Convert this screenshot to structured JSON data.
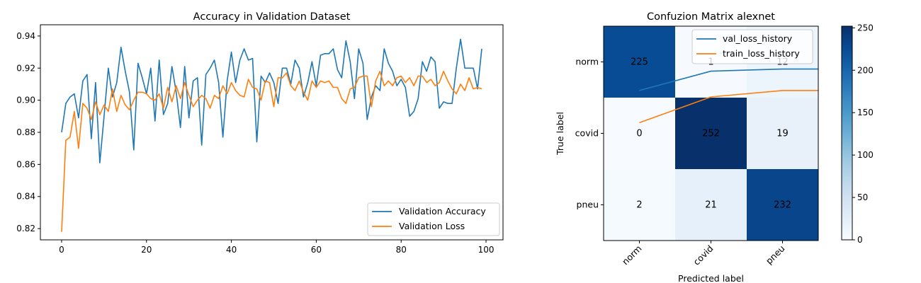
{
  "chart_data": [
    {
      "type": "line",
      "title": "Accuracy in Validation Dataset",
      "xlabel": "",
      "ylabel": "",
      "xlim": [
        -5,
        104
      ],
      "ylim": [
        0.813,
        0.947
      ],
      "xticks": [
        0,
        20,
        40,
        60,
        80,
        100
      ],
      "yticks": [
        0.82,
        0.84,
        0.86,
        0.88,
        0.9,
        0.92,
        0.94
      ],
      "ytick_labels": [
        "0.82",
        "0.84",
        "0.86",
        "0.88",
        "0.90",
        "0.92",
        "0.94"
      ],
      "legend_position": "lower-right",
      "grid": false,
      "series": [
        {
          "name": "Validation Accuracy",
          "color": "#1f77b4",
          "values": [
            0.88,
            0.898,
            0.902,
            0.904,
            0.889,
            0.912,
            0.916,
            0.876,
            0.911,
            0.861,
            0.89,
            0.92,
            0.902,
            0.911,
            0.933,
            0.918,
            0.905,
            0.869,
            0.923,
            0.914,
            0.904,
            0.92,
            0.887,
            0.925,
            0.891,
            0.898,
            0.921,
            0.905,
            0.883,
            0.921,
            0.889,
            0.912,
            0.914,
            0.872,
            0.916,
            0.92,
            0.925,
            0.911,
            0.877,
            0.912,
            0.93,
            0.911,
            0.925,
            0.932,
            0.925,
            0.926,
            0.874,
            0.915,
            0.911,
            0.917,
            0.911,
            0.898,
            0.92,
            0.92,
            0.91,
            0.925,
            0.92,
            0.902,
            0.911,
            0.924,
            0.909,
            0.928,
            0.929,
            0.929,
            0.932,
            0.919,
            0.914,
            0.937,
            0.924,
            0.901,
            0.932,
            0.923,
            0.888,
            0.902,
            0.909,
            0.906,
            0.932,
            0.923,
            0.918,
            0.909,
            0.913,
            0.908,
            0.89,
            0.893,
            0.901,
            0.924,
            0.918,
            0.927,
            0.924,
            0.895,
            0.899,
            0.898,
            0.898,
            0.92,
            0.938,
            0.92,
            0.92,
            0.92,
            0.907,
            0.932
          ]
        },
        {
          "name": "Validation Loss",
          "color": "#ff7f0e",
          "values": [
            0.818,
            0.875,
            0.877,
            0.893,
            0.87,
            0.898,
            0.895,
            0.888,
            0.899,
            0.891,
            0.897,
            0.893,
            0.907,
            0.893,
            0.903,
            0.897,
            0.894,
            0.9,
            0.905,
            0.905,
            0.904,
            0.901,
            0.9,
            0.904,
            0.895,
            0.908,
            0.899,
            0.909,
            0.901,
            0.911,
            0.903,
            0.896,
            0.9,
            0.903,
            0.901,
            0.895,
            0.903,
            0.901,
            0.909,
            0.904,
            0.911,
            0.906,
            0.903,
            0.902,
            0.913,
            0.908,
            0.907,
            0.9,
            0.912,
            0.911,
            0.896,
            0.914,
            0.914,
            0.917,
            0.909,
            0.906,
            0.912,
            0.905,
            0.9,
            0.912,
            0.908,
            0.912,
            0.911,
            0.912,
            0.908,
            0.908,
            0.901,
            0.898,
            0.907,
            0.908,
            0.914,
            0.915,
            0.915,
            0.896,
            0.912,
            0.918,
            0.909,
            0.912,
            0.909,
            0.914,
            0.915,
            0.911,
            0.914,
            0.909,
            0.915,
            0.915,
            0.911,
            0.913,
            0.909,
            0.911,
            0.918,
            0.912,
            0.907,
            0.904,
            0.91,
            0.906,
            0.914,
            0.907,
            0.908,
            0.907
          ]
        }
      ]
    },
    {
      "type": "heatmap",
      "title": "Confuzion Matrix alexnet",
      "xlabel": "Predicted label",
      "ylabel": "True label",
      "x_categories": [
        "norm",
        "covid",
        "pneu"
      ],
      "y_categories": [
        "norm",
        "covid",
        "pneu"
      ],
      "values": [
        [
          225,
          1,
          12
        ],
        [
          0,
          252,
          19
        ],
        [
          2,
          21,
          232
        ]
      ],
      "cell_labels": [
        [
          "225",
          "1",
          "12"
        ],
        [
          "0",
          "252",
          "19"
        ],
        [
          "2",
          "21",
          "232"
        ]
      ],
      "colormap": "Blues",
      "colorbar": {
        "min": 0,
        "max": 252,
        "ticks": [
          0,
          50,
          100,
          150,
          200,
          250
        ],
        "tick_labels": [
          "0",
          "50",
          "100",
          "150",
          "200",
          "250"
        ]
      },
      "legend_position": "top-right",
      "overlay_series": [
        {
          "name": "val_loss_history",
          "color": "#1f77b4",
          "x": [
            0,
            1,
            2
          ],
          "y": [
            0.3,
            0.21,
            0.2
          ]
        },
        {
          "name": "train_loss_history",
          "color": "#ff7f0e",
          "x": [
            0,
            1,
            2
          ],
          "y": [
            0.45,
            0.33,
            0.3
          ]
        }
      ]
    }
  ]
}
